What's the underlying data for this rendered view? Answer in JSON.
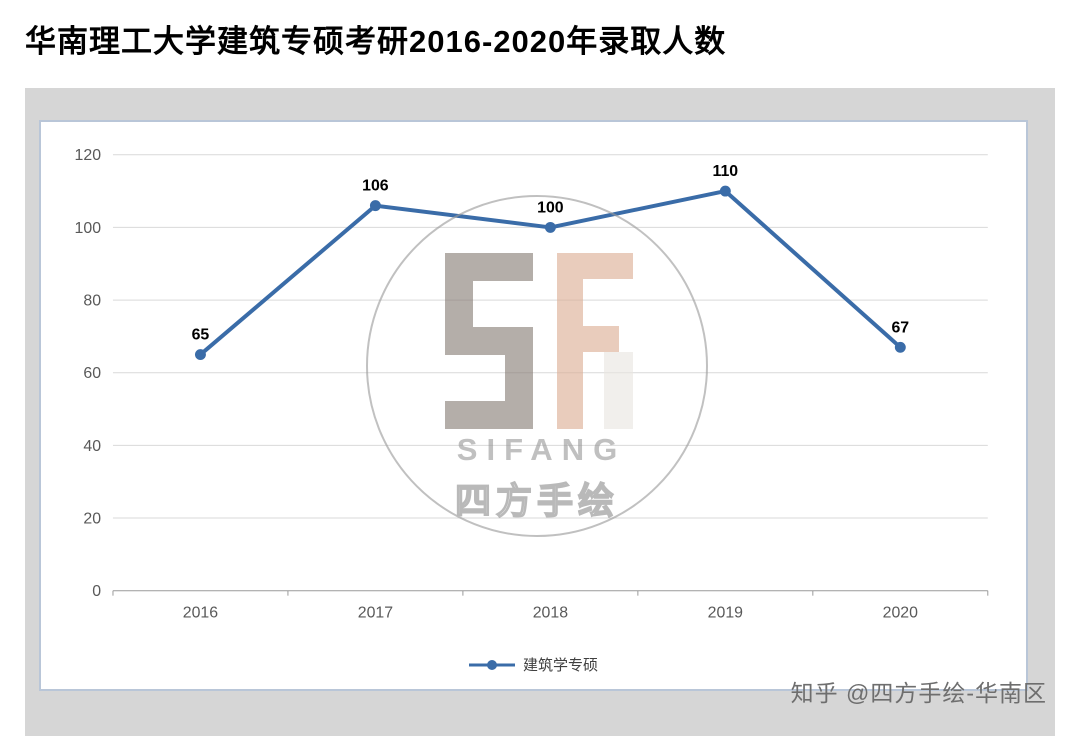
{
  "page": {
    "title": "华南理工大学建筑专硕考研2016-2020年录取人数"
  },
  "watermark": {
    "logo_letters": "SF",
    "brand_latin": "SIFANG",
    "brand_cn": "四方手绘",
    "circle_color": "#9b9b9b",
    "letter_s_color": "#877d75",
    "letter_f_color": "#dcae94"
  },
  "footer": {
    "credit": "知乎 @四方手绘-华南区"
  },
  "chart_data": {
    "type": "line",
    "title": "华南理工大学建筑专硕考研2016-2020年录取人数",
    "categories": [
      "2016",
      "2017",
      "2018",
      "2019",
      "2020"
    ],
    "series": [
      {
        "name": "建筑学专硕",
        "color": "#3A6CA8",
        "values": [
          65,
          106,
          100,
          110,
          67
        ]
      }
    ],
    "xlabel": "",
    "ylabel": "",
    "ylim": [
      0,
      120
    ],
    "yticks": [
      0,
      20,
      40,
      60,
      80,
      100,
      120
    ],
    "grid": true,
    "data_labels": true,
    "legend_position": "bottom",
    "colors": {
      "gridline": "#d9d9d9",
      "axis": "#9a9a9a",
      "tick_label": "#595959",
      "data_label": "#000000"
    }
  }
}
